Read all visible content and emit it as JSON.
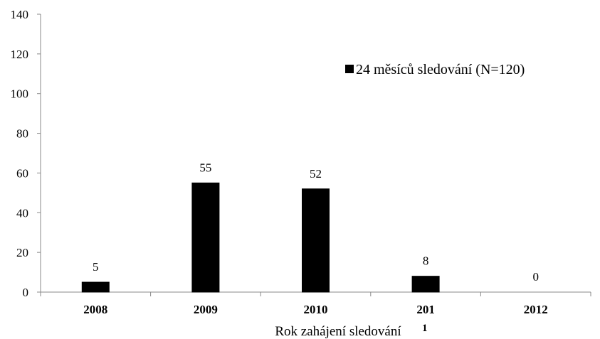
{
  "chart_data": {
    "type": "bar",
    "categories": [
      "2008",
      "2009",
      "2010",
      "201",
      "2012"
    ],
    "series": [
      {
        "name": "24 měsíců sledování (N=120)",
        "values": [
          5,
          55,
          52,
          8,
          0
        ],
        "color": "#000000"
      }
    ],
    "data_labels": [
      "5",
      "55",
      "52",
      "8",
      "0"
    ],
    "xlabel": "Rok zahájení sledování",
    "xlabel_footnote": "1",
    "ylabel": "",
    "ylim": [
      0,
      140
    ],
    "yticks": [
      0,
      20,
      40,
      60,
      80,
      100,
      120,
      140
    ],
    "grid": false,
    "legend_position": "top-right"
  }
}
